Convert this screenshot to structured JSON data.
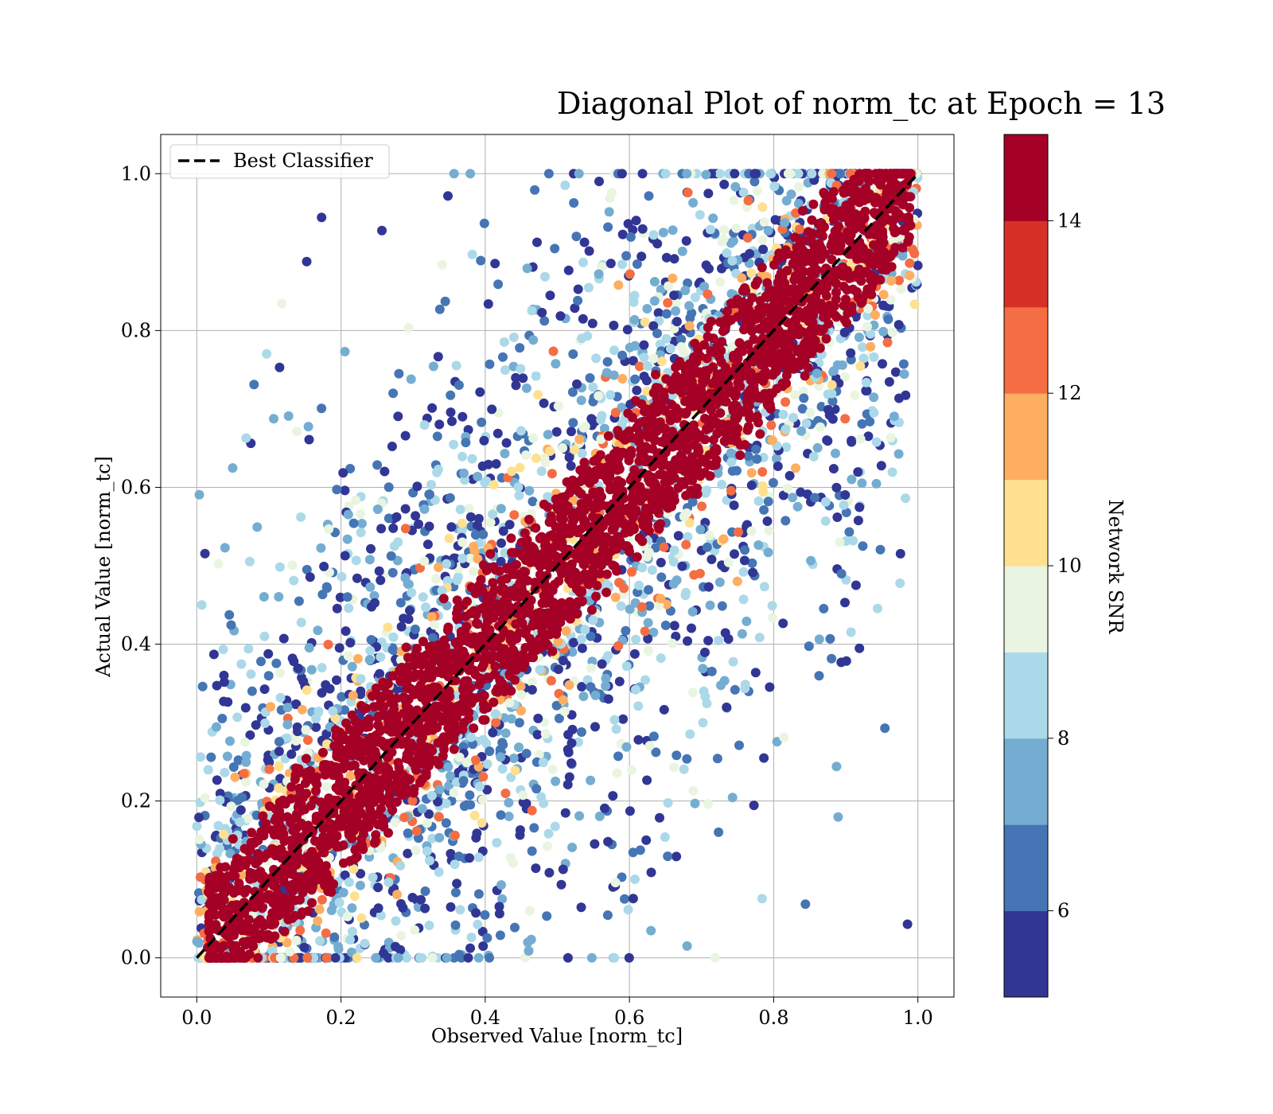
{
  "chart_data": {
    "type": "scatter",
    "title": "Diagonal Plot of norm_tc at Epoch = 13",
    "xlabel": "Observed Value [norm_tc]",
    "ylabel": "Actual Value [norm_tc]",
    "xlim": [
      -0.05,
      1.05
    ],
    "ylim": [
      -0.05,
      1.05
    ],
    "xticks": [
      0.0,
      0.2,
      0.4,
      0.6,
      0.8,
      1.0
    ],
    "yticks": [
      0.0,
      0.2,
      0.4,
      0.6,
      0.8,
      1.0
    ],
    "tick_labels": [
      "0.0",
      "0.2",
      "0.4",
      "0.6",
      "0.8",
      "1.0"
    ],
    "grid": true,
    "legend": {
      "position": "upper-left",
      "entries": [
        {
          "label": "Best Classifier",
          "style": "black dashed line"
        }
      ]
    },
    "reference_line": {
      "label": "Best Classifier",
      "x": [
        0.0,
        1.0
      ],
      "y": [
        0.0,
        1.0
      ],
      "color": "#000000",
      "dash": "dashed"
    },
    "scatter_summary": {
      "high_snr_band": {
        "snr_min": 14,
        "color": "#a50026",
        "typical_abs_residual_max": 0.1
      },
      "low_snr_spread": {
        "snr_range": [
          5,
          12
        ],
        "extends_to_full_unit_square": true
      }
    },
    "colorbar": {
      "label": "Network SNR",
      "min": 5,
      "max": 15,
      "ticks": [
        6,
        8,
        10,
        12,
        14
      ],
      "tick_labels": [
        "6",
        "8",
        "10",
        "12",
        "14"
      ],
      "bins": [
        {
          "from": 5,
          "to": 6,
          "color": "#313695"
        },
        {
          "from": 6,
          "to": 7,
          "color": "#4575b4"
        },
        {
          "from": 7,
          "to": 8,
          "color": "#74add1"
        },
        {
          "from": 8,
          "to": 9,
          "color": "#abd9e9"
        },
        {
          "from": 9,
          "to": 10,
          "color": "#e9f5e0"
        },
        {
          "from": 10,
          "to": 11,
          "color": "#fee090"
        },
        {
          "from": 11,
          "to": 12,
          "color": "#fdae61"
        },
        {
          "from": 12,
          "to": 13,
          "color": "#f46d43"
        },
        {
          "from": 13,
          "to": 14,
          "color": "#d73027"
        },
        {
          "from": 14,
          "to": 15,
          "color": "#a50026"
        }
      ]
    }
  }
}
